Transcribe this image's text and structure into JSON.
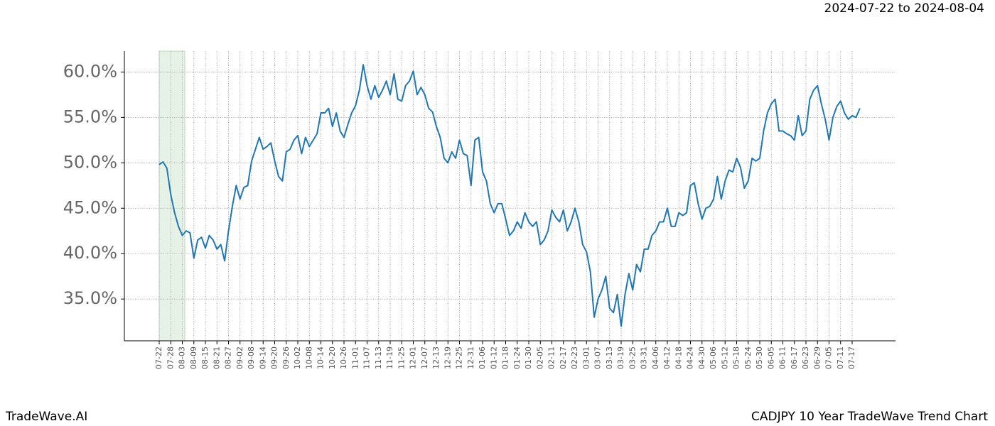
{
  "header": {
    "range": "2024-07-22 to 2024-08-04"
  },
  "footer": {
    "brand": "TradeWave.AI",
    "caption": "CADJPY 10 Year TradeWave Trend Chart"
  },
  "chart_data": {
    "type": "line",
    "color": "#1f77b4",
    "grid": true,
    "categories": [
      "07-22",
      null,
      null,
      "07-28",
      null,
      null,
      "08-03",
      null,
      null,
      "08-09",
      null,
      null,
      "08-15",
      null,
      null,
      "08-21",
      null,
      null,
      "08-27",
      null,
      null,
      "09-02",
      null,
      null,
      "09-08",
      null,
      null,
      "09-14",
      null,
      null,
      "09-20",
      null,
      null,
      "09-26",
      null,
      null,
      "10-02",
      null,
      null,
      "10-08",
      null,
      null,
      "10-14",
      null,
      null,
      "10-20",
      null,
      null,
      "10-26",
      null,
      null,
      "11-01",
      null,
      null,
      "11-07",
      null,
      null,
      "11-13",
      null,
      null,
      "11-19",
      null,
      null,
      "11-25",
      null,
      null,
      "12-01",
      null,
      null,
      "12-07",
      null,
      null,
      "12-13",
      null,
      null,
      "12-19",
      null,
      null,
      "12-25",
      null,
      null,
      "12-31",
      null,
      null,
      "01-06",
      null,
      null,
      "01-12",
      null,
      null,
      "01-18",
      null,
      null,
      "01-24",
      null,
      null,
      "01-30",
      null,
      null,
      "02-05",
      null,
      null,
      "02-11",
      null,
      null,
      "02-17",
      null,
      null,
      "02-23",
      null,
      null,
      "03-01",
      null,
      null,
      "03-07",
      null,
      null,
      "03-13",
      null,
      null,
      "03-19",
      null,
      null,
      "03-25",
      null,
      null,
      "03-31",
      null,
      null,
      "04-06",
      null,
      null,
      "04-12",
      null,
      null,
      "04-18",
      null,
      null,
      "04-24",
      null,
      null,
      "04-30",
      null,
      null,
      "05-06",
      null,
      null,
      "05-12",
      null,
      null,
      "05-18",
      null,
      null,
      "05-24",
      null,
      null,
      "05-30",
      null,
      null,
      "06-05",
      null,
      null,
      "06-11",
      null,
      null,
      "06-17",
      null,
      null,
      "06-23",
      null,
      null,
      "06-29",
      null,
      null,
      "07-05",
      null,
      null,
      "07-11",
      null,
      null,
      "07-17",
      null,
      null
    ],
    "values": [
      49.8,
      50.1,
      49.4,
      46.5,
      44.5,
      43.0,
      42.0,
      42.5,
      42.3,
      39.5,
      41.5,
      41.8,
      40.6,
      42.0,
      41.5,
      40.5,
      41.0,
      39.2,
      42.5,
      45.2,
      47.5,
      46.0,
      47.3,
      47.5,
      50.2,
      51.5,
      52.8,
      51.5,
      51.8,
      52.2,
      50.2,
      48.5,
      48.0,
      51.2,
      51.5,
      52.5,
      53.0,
      51.0,
      52.8,
      51.8,
      52.5,
      53.2,
      55.5,
      55.5,
      56.0,
      54.0,
      55.5,
      53.5,
      52.8,
      54.2,
      55.5,
      56.3,
      58.0,
      60.8,
      58.5,
      57.0,
      58.5,
      57.2,
      58.0,
      59.0,
      57.5,
      59.8,
      57.0,
      56.8,
      58.5,
      59.0,
      60.1,
      57.5,
      58.3,
      57.5,
      56.0,
      55.6,
      54.0,
      52.8,
      50.5,
      50.0,
      51.2,
      50.5,
      52.5,
      51.0,
      50.8,
      47.5,
      52.5,
      52.8,
      49.0,
      48.0,
      45.5,
      44.5,
      45.5,
      45.5,
      43.8,
      42.0,
      42.5,
      43.5,
      42.8,
      44.5,
      43.5,
      43.0,
      43.5,
      41.0,
      41.5,
      42.5,
      44.8,
      44.0,
      43.5,
      44.8,
      42.5,
      43.5,
      45.0,
      43.5,
      41.0,
      40.2,
      38.0,
      33.0,
      35.0,
      36.0,
      37.5,
      34.0,
      33.5,
      35.5,
      32.0,
      35.5,
      37.8,
      36.0,
      38.8,
      38.0,
      40.5,
      40.5,
      42.0,
      42.5,
      43.5,
      43.5,
      45.0,
      43.0,
      43.0,
      44.5,
      44.2,
      44.5,
      47.5,
      47.8,
      45.5,
      43.8,
      45.0,
      45.2,
      46.0,
      48.5,
      46.0,
      48.0,
      49.2,
      49.0,
      50.5,
      49.5,
      47.2,
      48.0,
      50.5,
      50.2,
      50.5,
      53.5,
      55.5,
      56.5,
      57.0,
      53.5,
      53.5,
      53.2,
      53.0,
      52.5,
      55.2,
      53.0,
      53.5,
      57.0,
      58.0,
      58.5,
      56.5,
      54.8,
      52.5,
      55.0,
      56.2,
      56.8,
      55.5,
      54.8,
      55.2,
      55.0,
      56.0
    ],
    "ylim": [
      30.4,
      62.3
    ],
    "yticks": [
      {
        "value": 35,
        "label": "35.0%"
      },
      {
        "value": 40,
        "label": "40.0%"
      },
      {
        "value": 45,
        "label": "45.0%"
      },
      {
        "value": 50,
        "label": "50.0%"
      },
      {
        "value": 55,
        "label": "55.0%"
      },
      {
        "value": 60,
        "label": "60.0%"
      }
    ]
  }
}
